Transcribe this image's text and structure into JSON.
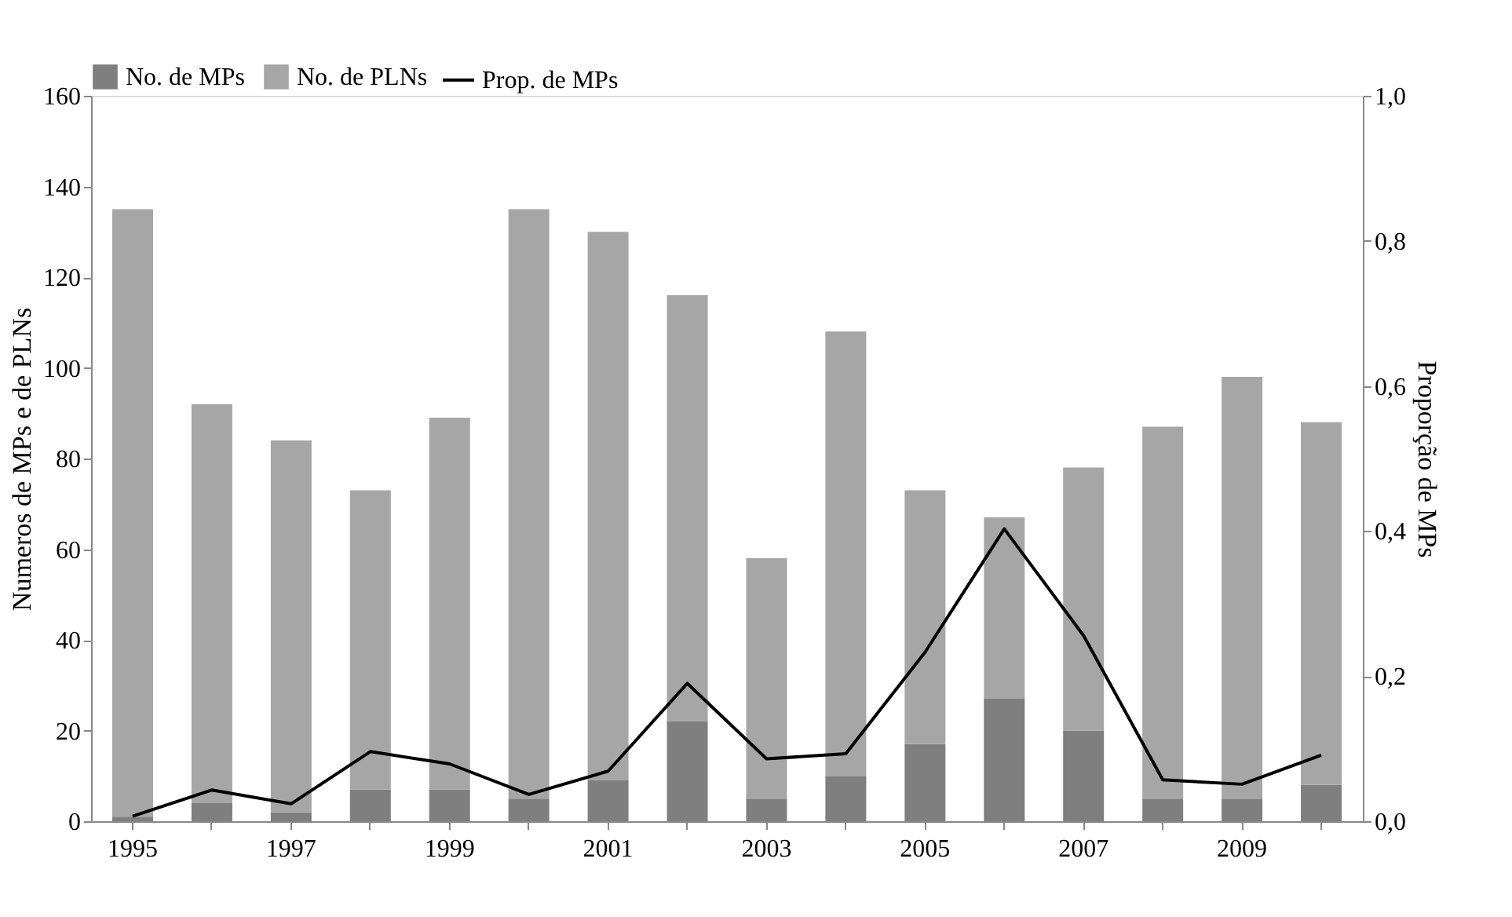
{
  "chart_data": {
    "type": "bar",
    "categories": [
      "1995",
      null,
      "1997",
      null,
      "1999",
      null,
      "2001",
      null,
      "2003",
      null,
      "2005",
      null,
      "2007",
      null,
      "2009",
      null
    ],
    "ylabel": "Numeros de MPs e de PLNs",
    "y2label": "Proporção de MPs",
    "ylim": [
      0,
      160
    ],
    "yticks": [
      0,
      20,
      40,
      60,
      80,
      100,
      120,
      140,
      160
    ],
    "y2lim": [
      0,
      1
    ],
    "y2ticks": [
      {
        "value": 0,
        "label": "0,0"
      },
      {
        "value": 0.2,
        "label": "0,2"
      },
      {
        "value": 0.4,
        "label": "0,4"
      },
      {
        "value": 0.6,
        "label": "0,6"
      },
      {
        "value": 0.8,
        "label": "0,8"
      },
      {
        "value": 1,
        "label": "1,0"
      }
    ],
    "grid": false,
    "legend": "top",
    "stacked": true,
    "series": [
      {
        "name": "No. de MPs",
        "color": "#7f7f7f",
        "values": [
          1,
          4,
          2,
          7,
          7,
          5,
          9,
          22,
          5,
          10,
          17,
          27,
          20,
          5,
          5,
          8
        ]
      },
      {
        "name": "No. de PLNs",
        "color": "#a6a6a6",
        "values": [
          134,
          88,
          82,
          66,
          82,
          130,
          121,
          94,
          53,
          98,
          56,
          40,
          58,
          82,
          93,
          80
        ]
      },
      {
        "name": "Prop. de MPs",
        "color": "#000000",
        "type": "line",
        "axis": "y2",
        "marker": "none",
        "values": [
          0.007,
          0.043,
          0.024,
          0.096,
          0.079,
          0.037,
          0.069,
          0.19,
          0.086,
          0.093,
          0.233,
          0.403,
          0.256,
          0.057,
          0.051,
          0.091
        ]
      }
    ]
  }
}
